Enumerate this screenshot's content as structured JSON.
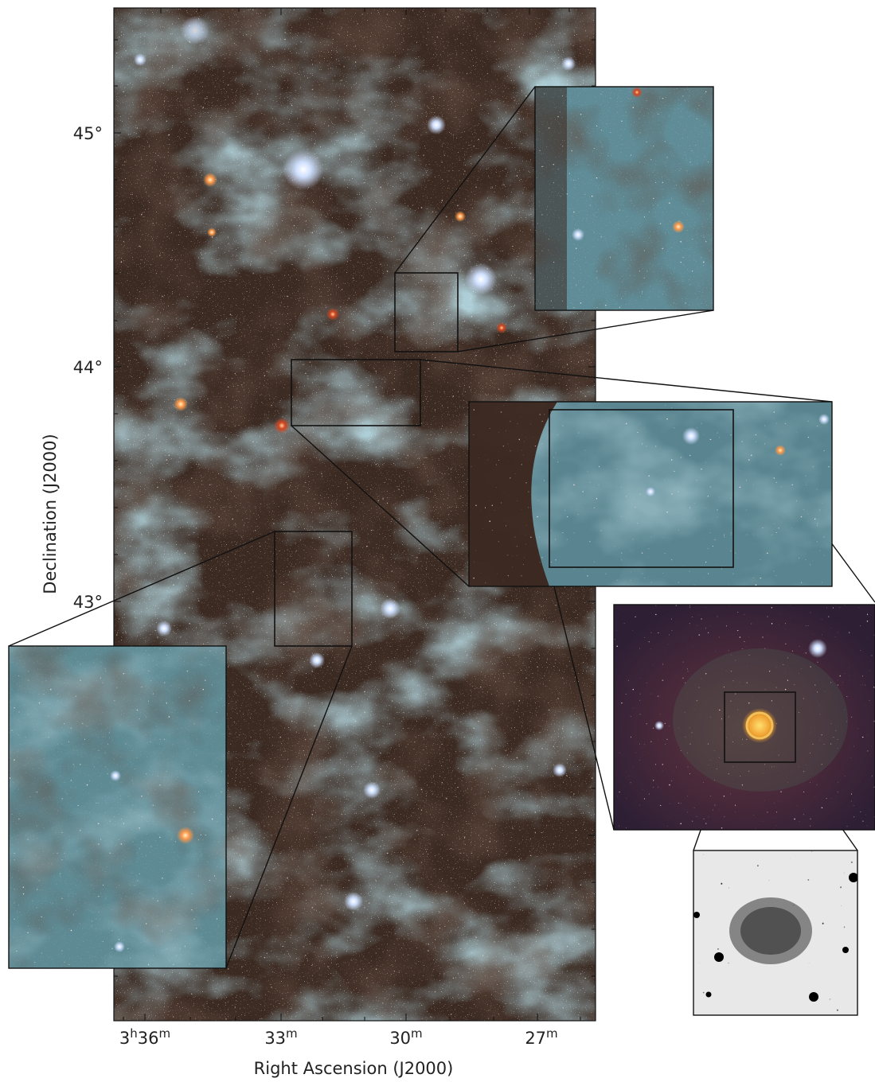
{
  "axes": {
    "xlabel": "Right Ascension (J2000)",
    "ylabel": "Declination (J2000)",
    "x_ticks": [
      {
        "base": "3",
        "sup1": "h",
        "mid": "36",
        "sup2": "m"
      },
      {
        "base": "33",
        "sup1": "",
        "mid": "",
        "sup2": "m"
      },
      {
        "base": "30",
        "sup1": "",
        "mid": "",
        "sup2": "m"
      },
      {
        "base": "27",
        "sup1": "",
        "mid": "",
        "sup2": "m"
      }
    ],
    "y_ticks": [
      "45°",
      "44°",
      "43°"
    ]
  },
  "colors": {
    "sky_base": "#3b2a22",
    "nebula_blue": "#6f9aa6",
    "dust_brown": "#2a1c16",
    "inset_border": "#111111",
    "bright_star_blue": "#cfe0ff"
  },
  "panels": [
    {
      "name": "main-sky-image"
    },
    {
      "name": "inset-top-right"
    },
    {
      "name": "inset-middle-right"
    },
    {
      "name": "inset-left"
    },
    {
      "name": "inset-red-nebula"
    },
    {
      "name": "inset-grayscale-nebula"
    }
  ]
}
